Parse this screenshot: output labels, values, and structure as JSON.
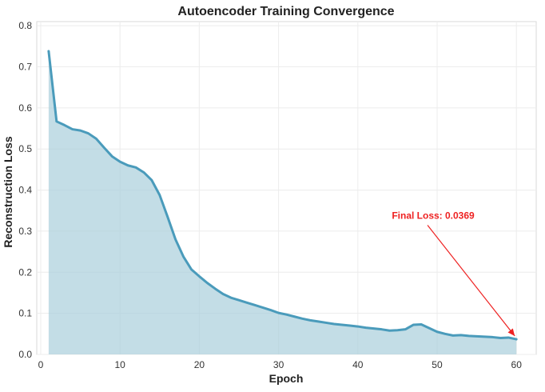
{
  "chart_data": {
    "type": "area",
    "title": "Autoencoder Training Convergence",
    "xlabel": "Epoch",
    "ylabel": "Reconstruction Loss",
    "xlim": [
      -0.5,
      62.5
    ],
    "ylim": [
      0,
      0.81
    ],
    "xticks": [
      0,
      10,
      20,
      30,
      40,
      50,
      60
    ],
    "yticks": [
      0.0,
      0.1,
      0.2,
      0.3,
      0.4,
      0.5,
      0.6,
      0.7,
      0.8
    ],
    "grid": true,
    "legend": "none",
    "colors": {
      "line": "#4a9bbb",
      "fill": "#a9cfdc",
      "annotation": "#ee2222",
      "grid": "#ececec"
    },
    "series": [
      {
        "x": [
          1,
          2,
          3,
          4,
          5,
          6,
          7,
          8,
          9,
          10,
          11,
          12,
          13,
          14,
          15,
          16,
          17,
          18,
          19,
          20,
          21,
          22,
          23,
          24,
          25,
          26,
          27,
          28,
          29,
          30,
          31,
          32,
          33,
          34,
          35,
          36,
          37,
          38,
          39,
          40,
          41,
          42,
          43,
          44,
          45,
          46,
          47,
          48,
          49,
          50,
          51,
          52,
          53,
          54,
          55,
          56,
          57,
          58,
          59,
          60
        ],
        "values": [
          0.738,
          0.567,
          0.558,
          0.548,
          0.545,
          0.538,
          0.525,
          0.503,
          0.482,
          0.469,
          0.46,
          0.455,
          0.443,
          0.424,
          0.388,
          0.335,
          0.28,
          0.238,
          0.207,
          0.19,
          0.174,
          0.16,
          0.147,
          0.138,
          0.132,
          0.126,
          0.12,
          0.114,
          0.108,
          0.101,
          0.097,
          0.092,
          0.087,
          0.083,
          0.08,
          0.077,
          0.074,
          0.072,
          0.07,
          0.068,
          0.065,
          0.063,
          0.061,
          0.058,
          0.059,
          0.061,
          0.072,
          0.073,
          0.064,
          0.055,
          0.05,
          0.046,
          0.047,
          0.045,
          0.044,
          0.043,
          0.042,
          0.04,
          0.041,
          0.0369
        ]
      }
    ],
    "annotation": {
      "text": "Final Loss: 0.0369",
      "point": [
        60,
        0.0369
      ],
      "text_pos": [
        49.5,
        0.33
      ]
    }
  }
}
